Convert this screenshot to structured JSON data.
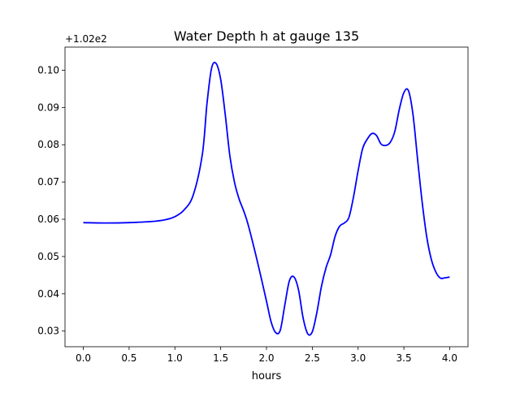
{
  "chart_data": {
    "type": "line",
    "title": "Water Depth h at gauge 135",
    "xlabel": "hours",
    "ylabel": "",
    "offset_label": "+1.02e2",
    "xlim": [
      -0.2,
      4.2
    ],
    "ylim": [
      0.0258,
      0.1062
    ],
    "xticks": [
      0.0,
      0.5,
      1.0,
      1.5,
      2.0,
      2.5,
      3.0,
      3.5,
      4.0
    ],
    "xtick_labels": [
      "0.0",
      "0.5",
      "1.0",
      "1.5",
      "2.0",
      "2.5",
      "3.0",
      "3.5",
      "4.0"
    ],
    "yticks": [
      0.03,
      0.04,
      0.05,
      0.06,
      0.07,
      0.08,
      0.09,
      0.1
    ],
    "ytick_labels": [
      "0.03",
      "0.04",
      "0.05",
      "0.06",
      "0.07",
      "0.08",
      "0.09",
      "0.10"
    ],
    "grid": false,
    "series": [
      {
        "color": "#0000ff",
        "x": [
          0.0,
          0.25,
          0.5,
          0.75,
          0.9,
          1.0,
          1.1,
          1.2,
          1.3,
          1.35,
          1.4,
          1.45,
          1.5,
          1.55,
          1.6,
          1.65,
          1.7,
          1.75,
          1.8,
          1.9,
          2.0,
          2.05,
          2.1,
          2.15,
          2.2,
          2.25,
          2.3,
          2.35,
          2.4,
          2.45,
          2.5,
          2.55,
          2.6,
          2.65,
          2.7,
          2.75,
          2.8,
          2.85,
          2.9,
          2.95,
          3.0,
          3.05,
          3.1,
          3.15,
          3.2,
          3.25,
          3.3,
          3.35,
          3.4,
          3.45,
          3.5,
          3.55,
          3.6,
          3.65,
          3.7,
          3.75,
          3.8,
          3.85,
          3.9,
          3.95,
          4.0
        ],
        "values": [
          0.0591,
          0.059,
          0.0591,
          0.0594,
          0.0599,
          0.0607,
          0.0625,
          0.0665,
          0.0775,
          0.091,
          0.1005,
          0.1018,
          0.0975,
          0.088,
          0.077,
          0.07,
          0.0655,
          0.0623,
          0.0585,
          0.0487,
          0.038,
          0.0325,
          0.0296,
          0.0302,
          0.037,
          0.0435,
          0.0445,
          0.041,
          0.0335,
          0.0293,
          0.0298,
          0.035,
          0.042,
          0.047,
          0.0505,
          0.0555,
          0.0582,
          0.059,
          0.0605,
          0.066,
          0.073,
          0.079,
          0.0815,
          0.083,
          0.0825,
          0.0802,
          0.0798,
          0.0806,
          0.0835,
          0.0895,
          0.094,
          0.0945,
          0.088,
          0.076,
          0.0645,
          0.0552,
          0.0492,
          0.0458,
          0.0442,
          0.0443,
          0.0445
        ]
      }
    ]
  }
}
